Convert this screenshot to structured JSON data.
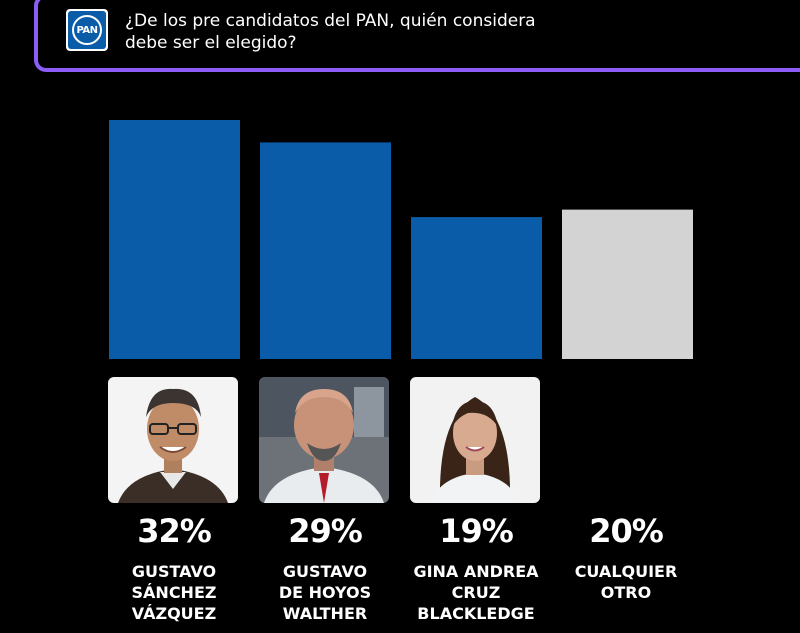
{
  "header": {
    "logo_text": "PAN",
    "question": "¿De los pre candidatos del PAN, quién considera debe ser el elegido?"
  },
  "colors": {
    "bar_candidate": "#0b5ca8",
    "bar_other": "#d3d3d3",
    "accent_border": "#8b5cf6",
    "background": "#000000"
  },
  "chart_data": {
    "type": "bar",
    "title": "",
    "categories": [
      "GUSTAVO SÁNCHEZ VÁZQUEZ",
      "GUSTAVO DE HOYOS WALTHER",
      "GINA ANDREA CRUZ BLACKLEDGE",
      "CUALQUIER OTRO"
    ],
    "values": [
      32,
      29,
      19,
      20
    ],
    "labels": [
      "32%",
      "29%",
      "19%",
      "20%"
    ],
    "ylim": [
      0,
      32
    ],
    "grid": false,
    "legend": "none"
  },
  "candidates": [
    {
      "pct": "32%",
      "name": "GUSTAVO\nSÁNCHEZ\nVÁZQUEZ",
      "photo": "candidate-photo"
    },
    {
      "pct": "29%",
      "name": "GUSTAVO\nDE HOYOS\nWALTHER",
      "photo": "candidate-photo"
    },
    {
      "pct": "19%",
      "name": "GINA ANDREA\nCRUZ\nBLACKLEDGE",
      "photo": "candidate-photo"
    },
    {
      "pct": "20%",
      "name": "CUALQUIER\nOTRO"
    }
  ]
}
